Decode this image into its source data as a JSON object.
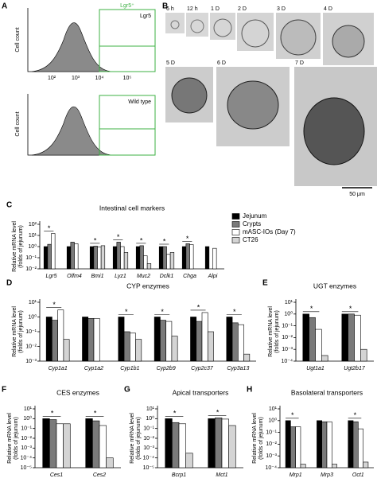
{
  "figure": {
    "panels": [
      "A",
      "B",
      "C",
      "D",
      "E",
      "F",
      "G",
      "H"
    ],
    "flow": {
      "ylabel": "Cell count",
      "gate": "Lgr5⁺",
      "top_label": "Lgr5",
      "bottom_label": "Wild type",
      "xticks": [
        "10²",
        "10³",
        "10⁴",
        "10⁵"
      ]
    },
    "timepoints": [
      "6 h",
      "12 h",
      "1 D",
      "2 D",
      "3 D",
      "4 D",
      "5 D",
      "6 D",
      "7 D"
    ],
    "scale_bar": "50 μm"
  },
  "chart_data": [
    {
      "type": "bar",
      "title": "Intestinal cell markers",
      "ylabel": [
        "Relative mRNA level",
        "(folds of jejunum)"
      ],
      "log": true,
      "categories": [
        "Lgr5",
        "Olfm4",
        "Bmi1",
        "Lyz1",
        "Muc2",
        "Dclk1",
        "Chga",
        "Alpi"
      ],
      "series": [
        {
          "name": "Jejunum",
          "color": "#000000",
          "values": [
            1,
            1,
            1,
            1,
            1,
            1,
            1,
            1
          ]
        },
        {
          "name": "Crypts",
          "color": "#7a7a7a",
          "values": [
            1.6,
            2.5,
            1.1,
            2.5,
            1.2,
            1,
            1.8,
            null
          ]
        },
        {
          "name": "mASC-IOs (Day 7)",
          "color": "#ffffff",
          "values": [
            15,
            1.8,
            0.9,
            1,
            0.15,
            0.2,
            1.5,
            0.7
          ]
        },
        {
          "name": "CT26",
          "color": "#d4d4d4",
          "values": [
            null,
            null,
            1.2,
            0.3,
            0.03,
            0.3,
            null,
            null
          ]
        }
      ],
      "ylim": [
        0.01,
        100
      ],
      "yticks": [
        {
          "value": 0.01,
          "label": "10⁻²"
        },
        {
          "value": 0.1,
          "label": "10⁻¹"
        },
        {
          "value": 1,
          "label": "10⁰"
        },
        {
          "value": 10,
          "label": "10¹"
        },
        {
          "value": 100,
          "label": "10²"
        }
      ],
      "annotations": [
        {
          "text": "*",
          "category": 0
        },
        {
          "text": "*",
          "category": 2
        },
        {
          "text": "*",
          "category": 3
        },
        {
          "text": "*",
          "category": 4
        },
        {
          "text": "*",
          "category": 5
        },
        {
          "text": "*",
          "category": 6
        }
      ]
    },
    {
      "type": "bar",
      "title": "CYP enzymes",
      "ylabel": [
        "Relative mRNA level",
        "(folds of jejunum)"
      ],
      "log": true,
      "categories": [
        "Cyp1a1",
        "Cyp1a2",
        "Cyp1b1",
        "Cyp2b9",
        "Cyp2c37",
        "Cyp3a13"
      ],
      "series": [
        {
          "color": "#000000",
          "values": [
            1,
            1,
            1,
            1,
            1,
            1
          ]
        },
        {
          "color": "#7a7a7a",
          "values": [
            0.6,
            0.8,
            0.1,
            0.6,
            0.5,
            0.4
          ]
        },
        {
          "color": "#ffffff",
          "values": [
            3,
            0.8,
            0.08,
            0.5,
            2,
            0.3
          ]
        },
        {
          "color": "#d4d4d4",
          "values": [
            0.03,
            null,
            0.03,
            0.05,
            0.1,
            0.003
          ]
        }
      ],
      "ylim": [
        0.001,
        10
      ],
      "yticks": [
        {
          "value": 0.001,
          "label": "10⁻³"
        },
        {
          "value": 0.01,
          "label": "10⁻²"
        },
        {
          "value": 0.1,
          "label": "10⁻¹"
        },
        {
          "value": 1,
          "label": "10⁰"
        },
        {
          "value": 10,
          "label": "10¹"
        }
      ],
      "annotations": [
        {
          "text": "*",
          "category": 0
        },
        {
          "text": "*",
          "category": 2
        },
        {
          "text": "*",
          "category": 3
        },
        {
          "text": "*",
          "category": 4
        },
        {
          "text": "*",
          "category": 5
        }
      ]
    },
    {
      "type": "bar",
      "title": "UGT enzymes",
      "ylabel": [
        "Relative mRNA level",
        "(folds of jejunum)"
      ],
      "log": true,
      "categories": [
        "Ugt1a1",
        "Ugt2b17"
      ],
      "series": [
        {
          "color": "#000000",
          "values": [
            1,
            1
          ]
        },
        {
          "color": "#7a7a7a",
          "values": [
            0.5,
            1
          ]
        },
        {
          "color": "#ffffff",
          "values": [
            0.05,
            0.8
          ]
        },
        {
          "color": "#d4d4d4",
          "values": [
            0.0003,
            0.001
          ]
        }
      ],
      "ylim": [
        0.0001,
        10
      ],
      "yticks": [
        {
          "value": 0.0001,
          "label": "10⁻⁴"
        },
        {
          "value": 0.001,
          "label": "10⁻³"
        },
        {
          "value": 0.01,
          "label": "10⁻²"
        },
        {
          "value": 0.1,
          "label": "10⁻¹"
        },
        {
          "value": 1,
          "label": "10⁰"
        },
        {
          "value": 10,
          "label": "10¹"
        }
      ],
      "annotations": [
        {
          "text": "*",
          "category": 0
        },
        {
          "text": "*",
          "category": 1
        }
      ]
    },
    {
      "type": "bar",
      "title": "CES enzymes",
      "ylabel": [
        "Relative mRNA level",
        "(folds of jejunum)"
      ],
      "log": true,
      "categories": [
        "Ces1",
        "Ces2"
      ],
      "series": [
        {
          "color": "#000000",
          "values": [
            1,
            1
          ]
        },
        {
          "color": "#7a7a7a",
          "values": [
            0.8,
            0.6
          ]
        },
        {
          "color": "#ffffff",
          "values": [
            0.3,
            0.2
          ]
        },
        {
          "color": "#d4d4d4",
          "values": [
            0.3,
            0.0001
          ]
        }
      ],
      "ylim": [
        1e-05,
        10
      ],
      "yticks": [
        {
          "value": 1e-05,
          "label": "10⁻⁵"
        },
        {
          "value": 0.0001,
          "label": "10⁻⁴"
        },
        {
          "value": 0.001,
          "label": "10⁻³"
        },
        {
          "value": 0.01,
          "label": "10⁻²"
        },
        {
          "value": 0.1,
          "label": "10⁻¹"
        },
        {
          "value": 1,
          "label": "10⁰"
        },
        {
          "value": 10,
          "label": "10¹"
        }
      ],
      "annotations": [
        {
          "text": "*",
          "category": 0
        },
        {
          "text": "*",
          "category": 1
        }
      ]
    },
    {
      "type": "bar",
      "title": "Apical transporters",
      "ylabel": [
        "Relative mRNA level",
        "(folds of jejunum)"
      ],
      "log": true,
      "categories": [
        "Bcrp1",
        "Mct1"
      ],
      "series": [
        {
          "color": "#000000",
          "values": [
            1,
            1
          ]
        },
        {
          "color": "#7a7a7a",
          "values": [
            0.4,
            1.2
          ]
        },
        {
          "color": "#ffffff",
          "values": [
            0.3,
            0.9
          ]
        },
        {
          "color": "#d4d4d4",
          "values": [
            0.0003,
            0.2
          ]
        }
      ],
      "ylim": [
        1e-05,
        10
      ],
      "yticks": [
        {
          "value": 1e-05,
          "label": "10⁻⁵"
        },
        {
          "value": 0.0001,
          "label": "10⁻⁴"
        },
        {
          "value": 0.001,
          "label": "10⁻³"
        },
        {
          "value": 0.01,
          "label": "10⁻²"
        },
        {
          "value": 0.1,
          "label": "10⁻¹"
        },
        {
          "value": 1,
          "label": "10⁰"
        },
        {
          "value": 10,
          "label": "10¹"
        }
      ],
      "annotations": [
        {
          "text": "*",
          "category": 0
        },
        {
          "text": "*",
          "category": 1
        }
      ]
    },
    {
      "type": "bar",
      "title": "Basolateral transporters",
      "ylabel": [
        "Relative mRNA level",
        "(folds of jejunum)"
      ],
      "log": true,
      "categories": [
        "Mrp1",
        "Mrp3",
        "Oct1"
      ],
      "series": [
        {
          "color": "#000000",
          "values": [
            1,
            1,
            1
          ]
        },
        {
          "color": "#7a7a7a",
          "values": [
            0.3,
            0.8,
            0.8
          ]
        },
        {
          "color": "#ffffff",
          "values": [
            0.3,
            0.8,
            0.2
          ]
        },
        {
          "color": "#d4d4d4",
          "values": [
            0.0002,
            0.0002,
            0.0003
          ]
        }
      ],
      "ylim": [
        0.0001,
        10
      ],
      "yticks": [
        {
          "value": 0.0001,
          "label": "10⁻⁴"
        },
        {
          "value": 0.001,
          "label": "10⁻³"
        },
        {
          "value": 0.01,
          "label": "10⁻²"
        },
        {
          "value": 0.1,
          "label": "10⁻¹"
        },
        {
          "value": 1,
          "label": "10⁰"
        },
        {
          "value": 10,
          "label": "10¹"
        }
      ],
      "annotations": [
        {
          "text": "*",
          "category": 0
        },
        {
          "text": "*",
          "category": 2
        }
      ]
    }
  ]
}
